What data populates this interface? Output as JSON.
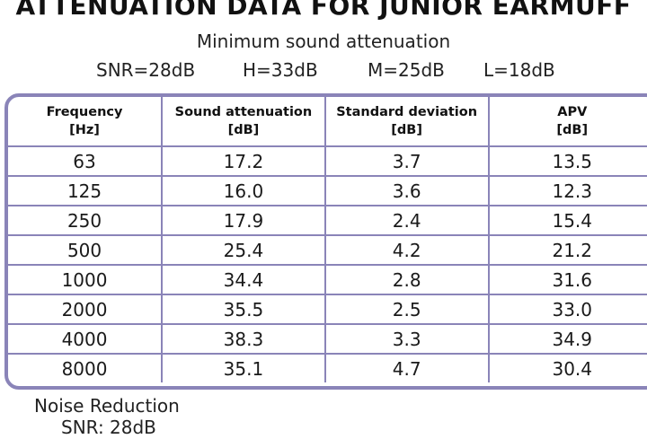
{
  "document": {
    "title": "ATTENUATION DATA FOR JUNIOR EARMUFF",
    "subtitle": "Minimum sound attenuation",
    "ratings": {
      "snr": "SNR=28dB",
      "h": "H=33dB",
      "m": "M=25dB",
      "l": "L=18dB"
    },
    "table": {
      "headers": [
        {
          "line1": "Frequency",
          "line2": "[Hz]"
        },
        {
          "line1": "Sound attenuation",
          "line2": "[dB]"
        },
        {
          "line1": "Standard deviation",
          "line2": "[dB]"
        },
        {
          "line1": "APV",
          "line2": "[dB]"
        }
      ],
      "rows": [
        [
          "63",
          "17.2",
          "3.7",
          "13.5"
        ],
        [
          "125",
          "16.0",
          "3.6",
          "12.3"
        ],
        [
          "250",
          "17.9",
          "2.4",
          "15.4"
        ],
        [
          "500",
          "25.4",
          "4.2",
          "21.2"
        ],
        [
          "1000",
          "34.4",
          "2.8",
          "31.6"
        ],
        [
          "2000",
          "35.5",
          "2.5",
          "33.0"
        ],
        [
          "4000",
          "38.3",
          "3.3",
          "34.9"
        ],
        [
          "8000",
          "35.1",
          "4.7",
          "30.4"
        ]
      ]
    },
    "footer": {
      "line1": "Noise Reduction",
      "line2": "SNR: 28dB"
    },
    "colors": {
      "table_border": "#8a84b8",
      "text": "#1a1a1a"
    }
  }
}
